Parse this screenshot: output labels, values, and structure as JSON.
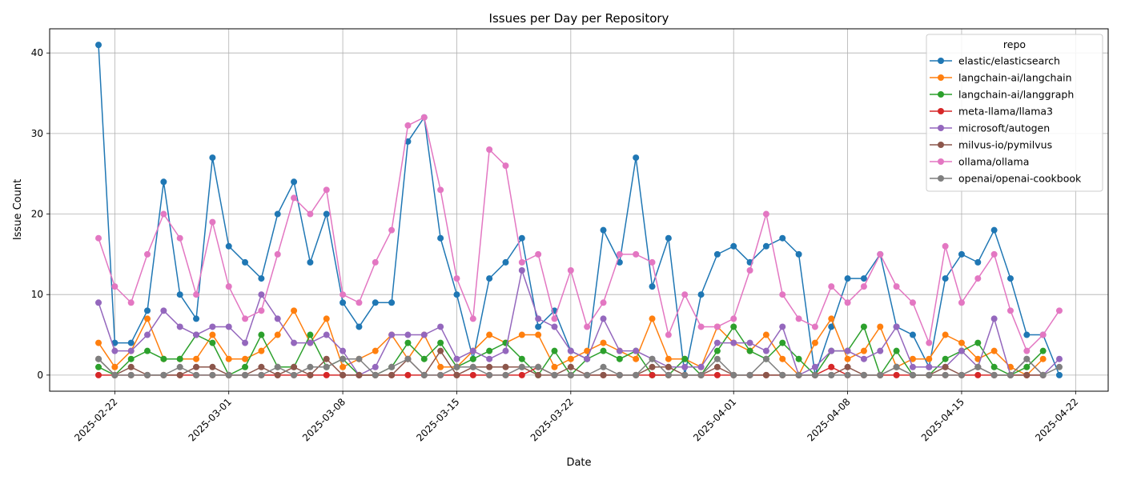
{
  "chart_data": {
    "type": "line",
    "title": "Issues per Day per Repository",
    "xlabel": "Date",
    "ylabel": "Issue Count",
    "x_start": "2025-02-21",
    "x_end": "2025-04-21",
    "xlim": [
      "2025-02-18",
      "2025-04-24"
    ],
    "ylim": [
      -2,
      43
    ],
    "xticks": [
      "2025-02-22",
      "2025-03-01",
      "2025-03-08",
      "2025-03-15",
      "2025-03-22",
      "2025-04-01",
      "2025-04-08",
      "2025-04-15",
      "2025-04-22"
    ],
    "yticks": [
      0,
      10,
      20,
      30,
      40
    ],
    "grid": true,
    "legend": {
      "title": "repo",
      "position": "top-right"
    },
    "series": [
      {
        "name": "elastic/elasticsearch",
        "color": "#1f77b4",
        "values": [
          41,
          4,
          4,
          8,
          24,
          10,
          7,
          27,
          16,
          14,
          12,
          20,
          24,
          14,
          20,
          9,
          6,
          9,
          9,
          29,
          32,
          17,
          10,
          2,
          12,
          14,
          17,
          6,
          8,
          3,
          2,
          18,
          14,
          27,
          11,
          17,
          0,
          10,
          15,
          16,
          14,
          16,
          17,
          15,
          0,
          6,
          12,
          12,
          15,
          6,
          5,
          1,
          12,
          15,
          14,
          18,
          12,
          5,
          5,
          0
        ]
      },
      {
        "name": "langchain-ai/langchain",
        "color": "#ff7f0e",
        "values": [
          4,
          1,
          3,
          7,
          2,
          2,
          2,
          5,
          2,
          2,
          3,
          5,
          8,
          4,
          7,
          1,
          2,
          3,
          5,
          2,
          5,
          1,
          1,
          3,
          5,
          4,
          5,
          5,
          1,
          2,
          3,
          4,
          3,
          2,
          7,
          2,
          2,
          1,
          6,
          4,
          3,
          5,
          2,
          0,
          4,
          7,
          2,
          3,
          6,
          1,
          2,
          2,
          5,
          4,
          2,
          3,
          1,
          0,
          2
        ]
      },
      {
        "name": "langchain-ai/langgraph",
        "color": "#2ca02c",
        "values": [
          1,
          0,
          2,
          3,
          2,
          2,
          5,
          4,
          0,
          1,
          5,
          1,
          1,
          5,
          1,
          2,
          0,
          0,
          1,
          4,
          2,
          4,
          1,
          2,
          3,
          4,
          2,
          0,
          3,
          0,
          2,
          3,
          2,
          3,
          0,
          0,
          2,
          0,
          3,
          6,
          3,
          2,
          4,
          2,
          0,
          3,
          3,
          6,
          0,
          3,
          0,
          0,
          2,
          3,
          4,
          1,
          0,
          1,
          3
        ]
      },
      {
        "name": "meta-llama/llama3",
        "color": "#d62728",
        "values": [
          0,
          0,
          0,
          0,
          0,
          0,
          0,
          0,
          0,
          0,
          0,
          0,
          0,
          0,
          0,
          0,
          0,
          0,
          0,
          0,
          0,
          0,
          0,
          0,
          0,
          0,
          0,
          1,
          0,
          0,
          0,
          0,
          0,
          0,
          0,
          0,
          0,
          0,
          0,
          0,
          0,
          0,
          0,
          0,
          0,
          1,
          0,
          0,
          0,
          0,
          0,
          0,
          0,
          0,
          0,
          0,
          0,
          0,
          0
        ]
      },
      {
        "name": "microsoft/autogen",
        "color": "#9467bd",
        "values": [
          9,
          3,
          3,
          5,
          8,
          6,
          5,
          6,
          6,
          4,
          10,
          7,
          4,
          4,
          5,
          3,
          0,
          1,
          5,
          5,
          5,
          6,
          2,
          3,
          2,
          3,
          13,
          7,
          6,
          3,
          2,
          7,
          3,
          3,
          2,
          1,
          1,
          1,
          4,
          4,
          4,
          3,
          6,
          0,
          1,
          3,
          3,
          2,
          3,
          6,
          1,
          1,
          1,
          3,
          1,
          7,
          0,
          2,
          0,
          2
        ]
      },
      {
        "name": "milvus-io/pymilvus",
        "color": "#8c564b",
        "values": [
          2,
          0,
          1,
          0,
          0,
          0,
          1,
          1,
          0,
          0,
          1,
          0,
          1,
          0,
          2,
          0,
          0,
          0,
          0,
          2,
          0,
          3,
          0,
          1,
          1,
          1,
          1,
          0,
          0,
          1,
          0,
          0,
          0,
          0,
          1,
          1,
          0,
          0,
          1,
          0,
          0,
          0,
          0,
          0,
          0,
          0,
          1,
          0,
          0,
          1,
          0,
          0,
          1,
          0,
          1,
          0,
          0,
          0,
          0
        ]
      },
      {
        "name": "ollama/ollama",
        "color": "#e377c2",
        "values": [
          17,
          11,
          9,
          15,
          20,
          17,
          10,
          19,
          11,
          7,
          8,
          15,
          22,
          20,
          23,
          10,
          9,
          14,
          18,
          31,
          32,
          23,
          12,
          7,
          28,
          26,
          14,
          15,
          7,
          13,
          6,
          9,
          15,
          15,
          14,
          5,
          10,
          6,
          6,
          7,
          13,
          20,
          10,
          7,
          6,
          11,
          9,
          11,
          15,
          11,
          9,
          4,
          16,
          9,
          12,
          15,
          8,
          3,
          5,
          8
        ]
      },
      {
        "name": "openai/openai-cookbook",
        "color": "#7f7f7f",
        "values": [
          2,
          0,
          0,
          0,
          0,
          1,
          0,
          0,
          0,
          0,
          0,
          1,
          0,
          1,
          1,
          2,
          2,
          0,
          1,
          2,
          0,
          0,
          1,
          1,
          0,
          0,
          1,
          1,
          0,
          0,
          0,
          1,
          0,
          0,
          2,
          0,
          0,
          0,
          2,
          0,
          0,
          2,
          0,
          0,
          0,
          0,
          0,
          0,
          0,
          1,
          0,
          0,
          0,
          0,
          1,
          0,
          0,
          2,
          0,
          1
        ]
      }
    ]
  }
}
